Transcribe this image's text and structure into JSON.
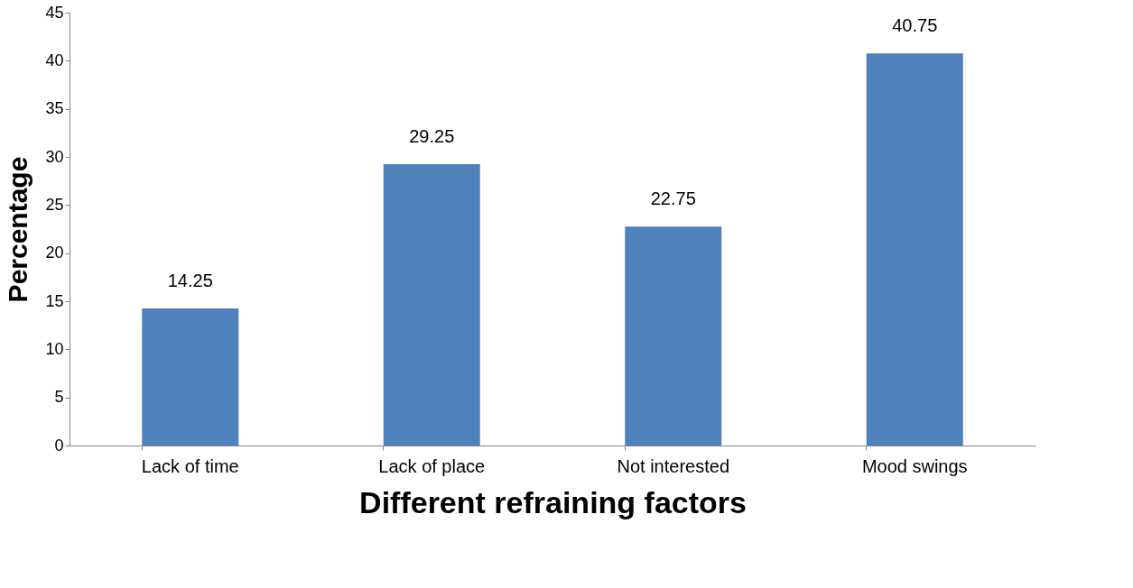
{
  "chart_data": {
    "type": "bar",
    "xlabel": "Different refraining factors",
    "ylabel": "Percentage",
    "categories": [
      "Lack of time",
      "Lack of place",
      "Not interested",
      "Mood swings"
    ],
    "values": [
      14.25,
      29.25,
      22.75,
      40.75
    ],
    "color": "#4f81bd",
    "ylim": [
      0,
      45
    ],
    "yticks": [
      0,
      5,
      10,
      15,
      20,
      25,
      30,
      35,
      40,
      45
    ],
    "grid": false,
    "data_labels": true
  }
}
